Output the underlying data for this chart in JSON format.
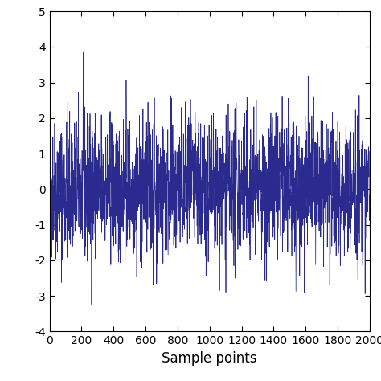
{
  "title": "",
  "xlabel": "Sample points",
  "ylabel": "",
  "xlim": [
    0,
    2000
  ],
  "ylim": [
    -4,
    5
  ],
  "yticks": [
    -4,
    -3,
    -2,
    -1,
    0,
    1,
    2,
    3,
    4,
    5
  ],
  "xticks": [
    0,
    200,
    400,
    600,
    800,
    1000,
    1200,
    1400,
    1600,
    1800,
    2000
  ],
  "line_color": "#2b2b8f",
  "line_width": 0.55,
  "n_samples": 2000,
  "random_seed": 42,
  "background_color": "#ffffff",
  "xlabel_fontsize": 12,
  "tick_fontsize": 10,
  "figsize": [
    4.74,
    4.74
  ],
  "dpi": 100
}
